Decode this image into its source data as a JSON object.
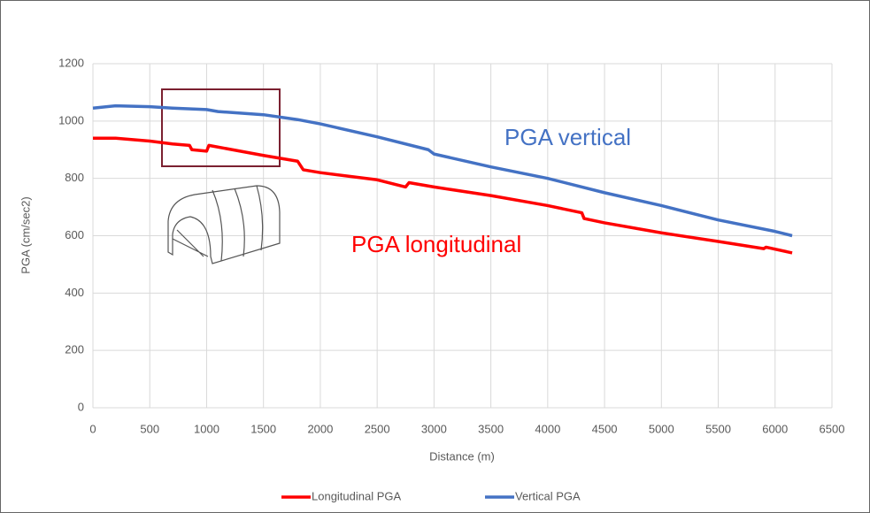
{
  "chart_data": {
    "type": "line",
    "x_label": "Distance (m)",
    "y_label": "PGA  (cm/sec2)",
    "xlim": [
      0,
      6500
    ],
    "xticks": [
      0,
      500,
      1000,
      1500,
      2000,
      2500,
      3000,
      3500,
      4000,
      4500,
      5000,
      5500,
      6000,
      6500
    ],
    "ylim": [
      0,
      1200
    ],
    "yticks": [
      0,
      200,
      400,
      600,
      800,
      1000,
      1200
    ],
    "grid": true,
    "annotations": [
      "PGA vertical",
      "PGA longitudinal"
    ],
    "series": [
      {
        "name": "Longitudinal PGA",
        "color": "#ff0000",
        "x": [
          0,
          200,
          500,
          700,
          850,
          870,
          1000,
          1020,
          1500,
          1800,
          1850,
          2000,
          2500,
          2750,
          2780,
          3000,
          3500,
          4000,
          4300,
          4320,
          4500,
          5000,
          5500,
          5900,
          5920,
          6150
        ],
        "values": [
          940,
          940,
          930,
          920,
          915,
          900,
          895,
          915,
          880,
          860,
          830,
          820,
          795,
          770,
          785,
          770,
          740,
          705,
          680,
          660,
          645,
          610,
          580,
          555,
          560,
          540
        ]
      },
      {
        "name": "Vertical PGA",
        "color": "#4472c4",
        "x": [
          0,
          200,
          500,
          700,
          1000,
          1100,
          1500,
          1800,
          2000,
          2500,
          2950,
          3000,
          3500,
          4000,
          4500,
          5000,
          5500,
          6000,
          6150
        ],
        "values": [
          1045,
          1053,
          1050,
          1045,
          1040,
          1033,
          1022,
          1005,
          990,
          945,
          900,
          885,
          840,
          800,
          750,
          705,
          655,
          615,
          600
        ]
      }
    ]
  }
}
